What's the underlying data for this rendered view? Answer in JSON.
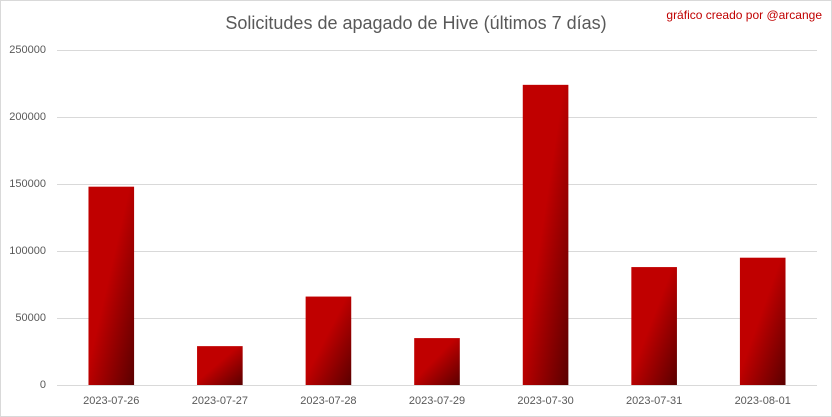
{
  "chart_data": {
    "type": "bar",
    "title": "Solicitudes de apagado de Hive (últimos 7 días)",
    "annotation": "gráfico creado por @arcange",
    "categories": [
      "2023-07-26",
      "2023-07-27",
      "2023-07-28",
      "2023-07-29",
      "2023-07-30",
      "2023-07-31",
      "2023-08-01"
    ],
    "values": [
      148000,
      29000,
      66000,
      35000,
      224000,
      88000,
      95000
    ],
    "color": "#c00000",
    "ylim": [
      0,
      250000
    ],
    "yticks": [
      0,
      50000,
      100000,
      150000,
      200000,
      250000
    ],
    "grid": true
  }
}
